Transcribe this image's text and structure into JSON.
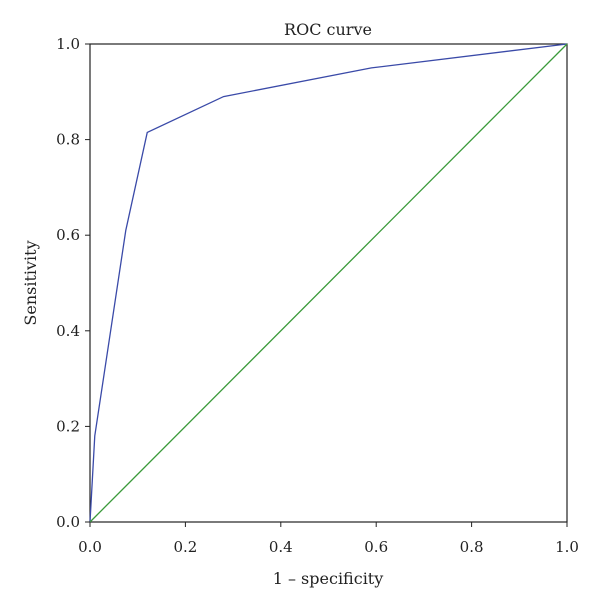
{
  "chart_data": {
    "type": "line",
    "title": "ROC curve",
    "xlabel": "1 – specificity",
    "ylabel": "Sensitivity",
    "xlim": [
      0.0,
      1.0
    ],
    "ylim": [
      0.0,
      1.0
    ],
    "x_ticks": [
      "0.0",
      "0.2",
      "0.4",
      "0.6",
      "0.8",
      "1.0"
    ],
    "y_ticks": [
      "0.0",
      "0.2",
      "0.4",
      "0.6",
      "0.8",
      "1.0"
    ],
    "grid": false,
    "legend": "none",
    "series": [
      {
        "color": "#3a4aa8",
        "x": [
          0.0,
          0.01,
          0.075,
          0.12,
          0.28,
          0.59,
          1.0
        ],
        "y": [
          0.0,
          0.18,
          0.61,
          0.815,
          0.89,
          0.95,
          1.0
        ]
      },
      {
        "color": "#3a9a3a",
        "x": [
          0.0,
          1.0
        ],
        "y": [
          0.0,
          1.0
        ]
      }
    ]
  }
}
